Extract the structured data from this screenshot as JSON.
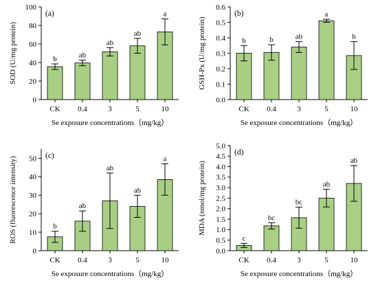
{
  "colors": {
    "bar_fill": "#a9cf85",
    "axis": "#000000"
  },
  "chart_data": [
    {
      "type": "bar",
      "panel": "(a)",
      "categories": [
        "CK",
        "0.4",
        "3",
        "5",
        "10"
      ],
      "values": [
        35.5,
        39.5,
        51.5,
        58,
        73
      ],
      "errors": [
        3,
        3,
        4.5,
        8,
        14
      ],
      "significance": [
        "b",
        "ab",
        "ab",
        "ab",
        "a"
      ],
      "xlabel": "Se exposure concentrations（mg/kg）",
      "ylabel": "SOD (U/mg protein)",
      "ylim": [
        0,
        100
      ],
      "yticks": [
        0,
        20,
        40,
        60,
        80,
        100
      ],
      "ytick_labels": [
        "0",
        "20",
        "40",
        "60",
        "80",
        "100"
      ]
    },
    {
      "type": "bar",
      "panel": "(b)",
      "categories": [
        "CK",
        "0.4",
        "3",
        "5",
        "10"
      ],
      "values": [
        0.3,
        0.305,
        0.34,
        0.51,
        0.285
      ],
      "errors": [
        0.05,
        0.05,
        0.035,
        0.01,
        0.09
      ],
      "significance": [
        "b",
        "b",
        "ab",
        "a",
        "b"
      ],
      "xlabel": "Se exposure concentrations（mg/kg）",
      "ylabel": "GSH-Px (U/mg protein)",
      "ylim": [
        0,
        0.6
      ],
      "yticks": [
        0,
        0.1,
        0.2,
        0.3,
        0.4,
        0.5,
        0.6
      ],
      "ytick_labels": [
        "0.0",
        "0.1",
        "0.2",
        "0.3",
        "0.4",
        "0.5",
        "0.6"
      ]
    },
    {
      "type": "bar",
      "panel": "(c)",
      "categories": [
        "CK",
        "0.4",
        "3",
        "5",
        "10"
      ],
      "values": [
        7.5,
        16,
        27,
        24,
        38.5
      ],
      "errors": [
        3,
        5.5,
        15,
        6,
        8.5
      ],
      "significance": [
        "b",
        "ab",
        "ab",
        "ab",
        "a"
      ],
      "xlabel": "Se exposure concentrations（mg/kg）",
      "ylabel": "ROS (fluorescence intensity)",
      "ylim": [
        0,
        55
      ],
      "yticks": [
        0,
        10,
        20,
        30,
        40,
        50
      ],
      "ytick_labels": [
        "0",
        "10",
        "20",
        "30",
        "40",
        "50"
      ]
    },
    {
      "type": "bar",
      "panel": "(d)",
      "categories": [
        "CK",
        "0.4",
        "3",
        "5",
        "10"
      ],
      "values": [
        0.25,
        1.18,
        1.57,
        2.5,
        3.2
      ],
      "errors": [
        0.1,
        0.15,
        0.5,
        0.42,
        0.85
      ],
      "significance": [
        "c",
        "bc",
        "bc",
        "ab",
        "ab"
      ],
      "xlabel": "Se exposure concentrations（mg/kg）",
      "ylabel": "MDA (nmol/mg protein)",
      "ylim": [
        0,
        5
      ],
      "yticks": [
        0,
        0.5,
        1,
        1.5,
        2,
        2.5,
        3,
        3.5,
        4,
        4.5,
        5
      ],
      "ytick_labels": [
        "0.0",
        "0.5",
        "1.0",
        "1.5",
        "2.0",
        "2.5",
        "3.0",
        "3.5",
        "4.0",
        "4.5",
        "5.0"
      ]
    }
  ]
}
